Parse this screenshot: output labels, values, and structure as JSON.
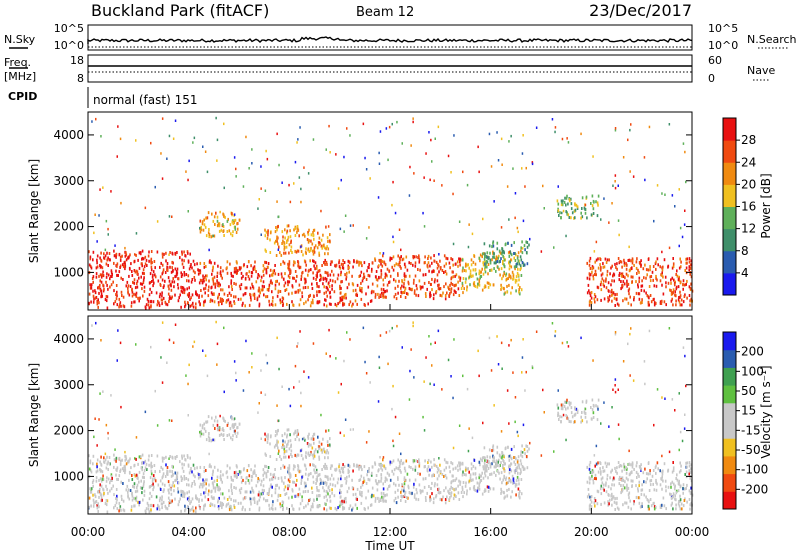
{
  "header": {
    "station": "Buckland Park (fitACF)",
    "beam": "Beam 12",
    "date": "23/Dec/2017"
  },
  "noise_panel": {
    "left_label": "N.Sky",
    "right_label": "N.Search",
    "left_ticks": [
      "10^5",
      "10^0"
    ],
    "right_ticks": [
      "10^5",
      "10^0"
    ]
  },
  "freq_panel": {
    "left_label_1": "Freq.",
    "left_label_2": "[MHz]",
    "left_ticks": [
      "18",
      "8"
    ],
    "right_label": "Nave",
    "right_ticks": [
      "60",
      "0"
    ]
  },
  "cpid": {
    "label": "CPID",
    "value": "normal (fast) 151"
  },
  "colors": {
    "power_scale": [
      "#1a1aee",
      "#2a5cb0",
      "#3f8f6a",
      "#5fb05a",
      "#f0c020",
      "#f08a10",
      "#f04a10",
      "#e81010"
    ],
    "velocity_scale": [
      "#e81010",
      "#f04a10",
      "#f08a10",
      "#f0c020",
      "#c8c8c8",
      "#c8c8c8",
      "#5fc040",
      "#3fa050",
      "#2a5cb0",
      "#1a1aee"
    ]
  },
  "chart_data": [
    {
      "type": "heatmap",
      "name": "power",
      "ylabel": "Slant Range [km]",
      "colorbar_label": "Power [dB]",
      "colorbar_ticks": [
        "28",
        "24",
        "20",
        "16",
        "12",
        "8",
        "4"
      ],
      "colorbar_range": [
        0,
        32
      ],
      "xlim_hours": [
        0,
        24
      ],
      "ylim_km": [
        180,
        4500
      ],
      "y_ticks": [
        "1000",
        "2000",
        "3000",
        "4000"
      ],
      "y_tick_values": [
        1000,
        2000,
        3000,
        4000
      ],
      "scatter_regions": [
        {
          "t0": 0.0,
          "t1": 4.4,
          "r0": 250,
          "r1": 1500,
          "value": 29
        },
        {
          "t0": 4.4,
          "t1": 11.3,
          "r0": 300,
          "r1": 1300,
          "value": 27
        },
        {
          "t0": 11.3,
          "t1": 14.8,
          "r0": 450,
          "r1": 1400,
          "value": 27
        },
        {
          "t0": 14.8,
          "t1": 17.2,
          "r0": 550,
          "r1": 1500,
          "value": 19
        },
        {
          "t0": 19.8,
          "t1": 24.0,
          "r0": 300,
          "r1": 1350,
          "value": 27
        },
        {
          "t0": 4.4,
          "t1": 6.0,
          "r0": 1800,
          "r1": 2350,
          "value": 20
        },
        {
          "t0": 7.0,
          "t1": 9.6,
          "r0": 1400,
          "r1": 2050,
          "value": 22
        },
        {
          "t0": 18.6,
          "t1": 20.3,
          "r0": 2200,
          "r1": 2700,
          "value": 14
        },
        {
          "t0": 15.7,
          "t1": 17.5,
          "r0": 1100,
          "r1": 1700,
          "value": 11
        }
      ]
    },
    {
      "type": "heatmap",
      "name": "velocity",
      "ylabel": "Slant Range [km]",
      "xlabel": "Time UT",
      "colorbar_label": "Velocity [m s⁻¹]",
      "colorbar_ticks": [
        "200",
        "100",
        "50",
        "15",
        "-15",
        "-50",
        "-100",
        "-200"
      ],
      "xlim_hours": [
        0,
        24
      ],
      "x_ticks": [
        "00:00",
        "04:00",
        "08:00",
        "12:00",
        "16:00",
        "20:00",
        "00:00"
      ],
      "x_tick_hours": [
        0,
        4,
        8,
        12,
        16,
        20,
        24
      ],
      "ylim_km": [
        180,
        4500
      ],
      "y_ticks": [
        "1000",
        "2000",
        "3000",
        "4000"
      ],
      "y_tick_values": [
        1000,
        2000,
        3000,
        4000
      ]
    }
  ]
}
